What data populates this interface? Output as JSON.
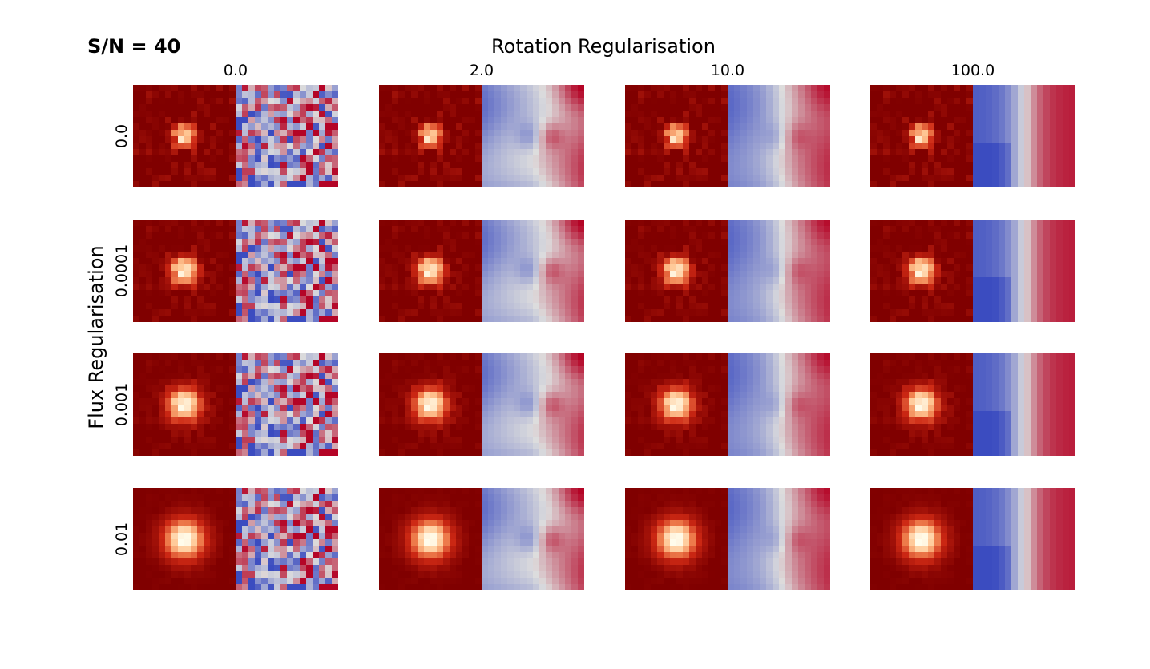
{
  "figure": {
    "sn_label": "S/N = 40",
    "column_title": "Rotation Regularisation",
    "row_title": "Flux Regularisation",
    "columns": [
      "0.0",
      "2.0",
      "10.0",
      "100.0"
    ],
    "rows": [
      "0.0",
      "0.0001",
      "0.001",
      "0.01"
    ]
  },
  "chart_data": {
    "type": "heatmap",
    "title": "S/N = 40",
    "xlabel": "Rotation Regularisation",
    "ylabel": "Flux Regularisation",
    "x_values": [
      0.0,
      2.0,
      10.0,
      100.0
    ],
    "y_values": [
      0.0,
      0.0001,
      0.001,
      0.01
    ],
    "panel_content": [
      "flux map",
      "velocity map"
    ],
    "flux_colormap": "gist_heat-like (dark red background, white core)",
    "velocity_colormap": "coolwarm (blue to red)",
    "grid_cells_per_map": 16,
    "colors": {
      "flux_background": "#8b0000",
      "flux_core": "#fffbe8",
      "velocity_negative": "#3b4cc0",
      "velocity_zero": "#dddddd",
      "velocity_positive": "#b40426"
    }
  }
}
